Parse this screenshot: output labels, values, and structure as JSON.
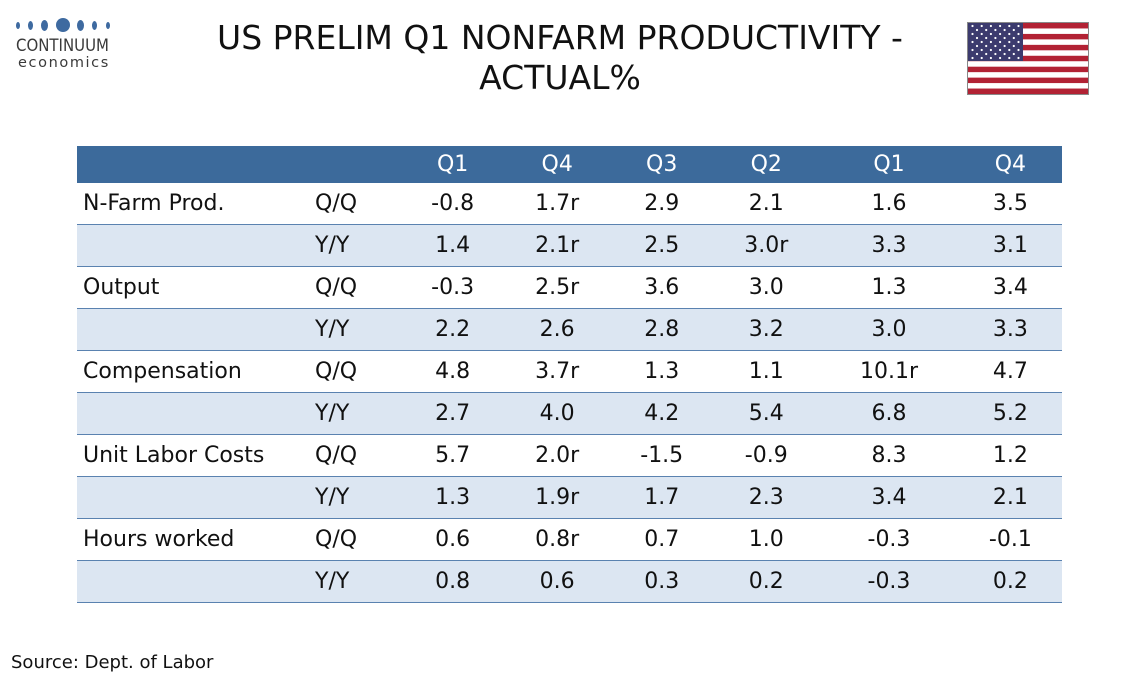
{
  "logo": {
    "brand": "CONTINUUM",
    "sub": "economics"
  },
  "title_line1": "US PRELIM Q1 NONFARM PRODUCTIVITY -",
  "title_line2": "ACTUAL%",
  "flag_icon": "us-flag-icon",
  "colors": {
    "header": "#3c6a9b",
    "row_alt": "#dce6f2",
    "flag_red": "#b22234",
    "flag_blue": "#3c3b6e"
  },
  "chart_data": {
    "type": "table",
    "columns": [
      "Q1",
      "Q4",
      "Q3",
      "Q2",
      "Q1",
      "Q4"
    ],
    "rows": [
      {
        "label": "N-Farm Prod.",
        "measure": "Q/Q",
        "values": [
          "-0.8",
          "1.7r",
          "2.9",
          "2.1",
          "1.6",
          "3.5"
        ]
      },
      {
        "label": "",
        "measure": "Y/Y",
        "values": [
          "1.4",
          "2.1r",
          "2.5",
          "3.0r",
          "3.3",
          "3.1"
        ]
      },
      {
        "label": "Output",
        "measure": "Q/Q",
        "values": [
          "-0.3",
          "2.5r",
          "3.6",
          "3.0",
          "1.3",
          "3.4"
        ]
      },
      {
        "label": "",
        "measure": "Y/Y",
        "values": [
          "2.2",
          "2.6",
          "2.8",
          "3.2",
          "3.0",
          "3.3"
        ]
      },
      {
        "label": "Compensation",
        "measure": "Q/Q",
        "values": [
          "4.8",
          "3.7r",
          "1.3",
          "1.1",
          "10.1r",
          "4.7"
        ]
      },
      {
        "label": "",
        "measure": "Y/Y",
        "values": [
          "2.7",
          "4.0",
          "4.2",
          "5.4",
          "6.8",
          "5.2"
        ]
      },
      {
        "label": "Unit Labor Costs",
        "measure": "Q/Q",
        "values": [
          "5.7",
          "2.0r",
          "-1.5",
          "-0.9",
          "8.3",
          "1.2"
        ]
      },
      {
        "label": "",
        "measure": "Y/Y",
        "values": [
          "1.3",
          "1.9r",
          "1.7",
          "2.3",
          "3.4",
          "2.1"
        ]
      },
      {
        "label": "Hours worked",
        "measure": "Q/Q",
        "values": [
          "0.6",
          "0.8r",
          "0.7",
          "1.0",
          "-0.3",
          "-0.1"
        ]
      },
      {
        "label": "",
        "measure": "Y/Y",
        "values": [
          "0.8",
          "0.6",
          "0.3",
          "0.2",
          "-0.3",
          "0.2"
        ]
      }
    ]
  },
  "source": "Source: Dept. of Labor"
}
